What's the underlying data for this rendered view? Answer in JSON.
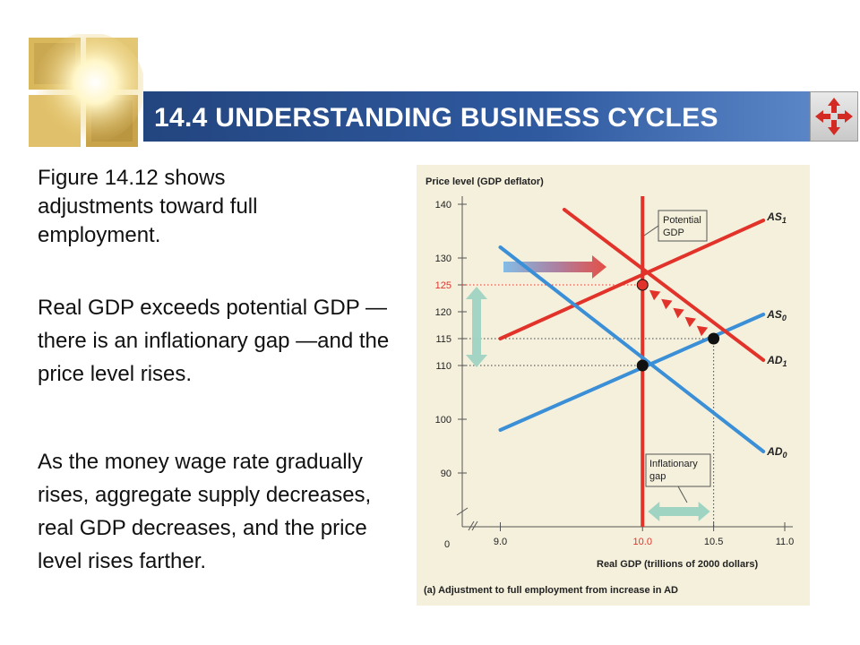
{
  "slide": {
    "title": "14.4 UNDERSTANDING BUSINESS CYCLES",
    "para1": "Figure 14.12 shows adjustments toward full employment.",
    "para2": "Real GDP exceeds potential GDP — there is an inflationary gap —and the price level rises.",
    "para3": "As the money wage rate gradually rises, aggregate supply decreases, real GDP decreases, and the price level rises farther."
  },
  "nav": {
    "icon": "four-way-arrow-icon"
  },
  "colors": {
    "red": "#e2332b",
    "blue": "#3b8fd6",
    "green": "#9fd3c2",
    "title_bar": "#2f5aa0"
  },
  "chart_data": {
    "type": "line",
    "title": "",
    "caption": "(a) Adjustment to full employment from increase in AD",
    "xlabel": "Real GDP (trillions of 2000 dollars)",
    "ylabel": "Price level (GDP deflator)",
    "xlim": [
      8.75,
      11.0
    ],
    "ylim": [
      80,
      140
    ],
    "x_ticks": [
      "9.0",
      "10.0",
      "10.5",
      "11.0"
    ],
    "y_ticks": [
      "140",
      "130",
      "125",
      "120",
      "115",
      "110",
      "100",
      "90"
    ],
    "zero_label": "0",
    "series": [
      {
        "name": "AS0",
        "label_main": "AS",
        "label_sub": "0",
        "color": "#3b8fd6",
        "points": [
          [
            9.0,
            98.0
          ],
          [
            10.85,
            119.5
          ]
        ]
      },
      {
        "name": "AS1",
        "label_main": "AS",
        "label_sub": "1",
        "color": "#e2332b",
        "points": [
          [
            9.0,
            115.0
          ],
          [
            10.85,
            137.0
          ]
        ]
      },
      {
        "name": "AD0",
        "label_main": "AD",
        "label_sub": "0",
        "color": "#3b8fd6",
        "points": [
          [
            9.0,
            132.0
          ],
          [
            10.85,
            94.0
          ]
        ]
      },
      {
        "name": "AD1",
        "label_main": "AD",
        "label_sub": "1",
        "color": "#e2332b",
        "points": [
          [
            9.45,
            139.0
          ],
          [
            10.85,
            111.0
          ]
        ]
      }
    ],
    "potential_gdp": {
      "x": 10.0,
      "label_line1": "Potential",
      "label_line2": "GDP",
      "color": "#e2332b"
    },
    "points": [
      {
        "x": 10.0,
        "y": 110,
        "color": "#111111"
      },
      {
        "x": 10.5,
        "y": 115,
        "color": "#111111"
      },
      {
        "x": 10.0,
        "y": 125,
        "color": "#e2332b"
      }
    ],
    "adjustment_path": {
      "from": [
        10.5,
        115
      ],
      "to": [
        10.0,
        125
      ],
      "arrows": 5
    },
    "gap_annotation": {
      "label_line1": "Inflationary",
      "label_line2": "gap",
      "from_x": 10.0,
      "to_x": 10.5
    },
    "highlight_tick": "125"
  }
}
